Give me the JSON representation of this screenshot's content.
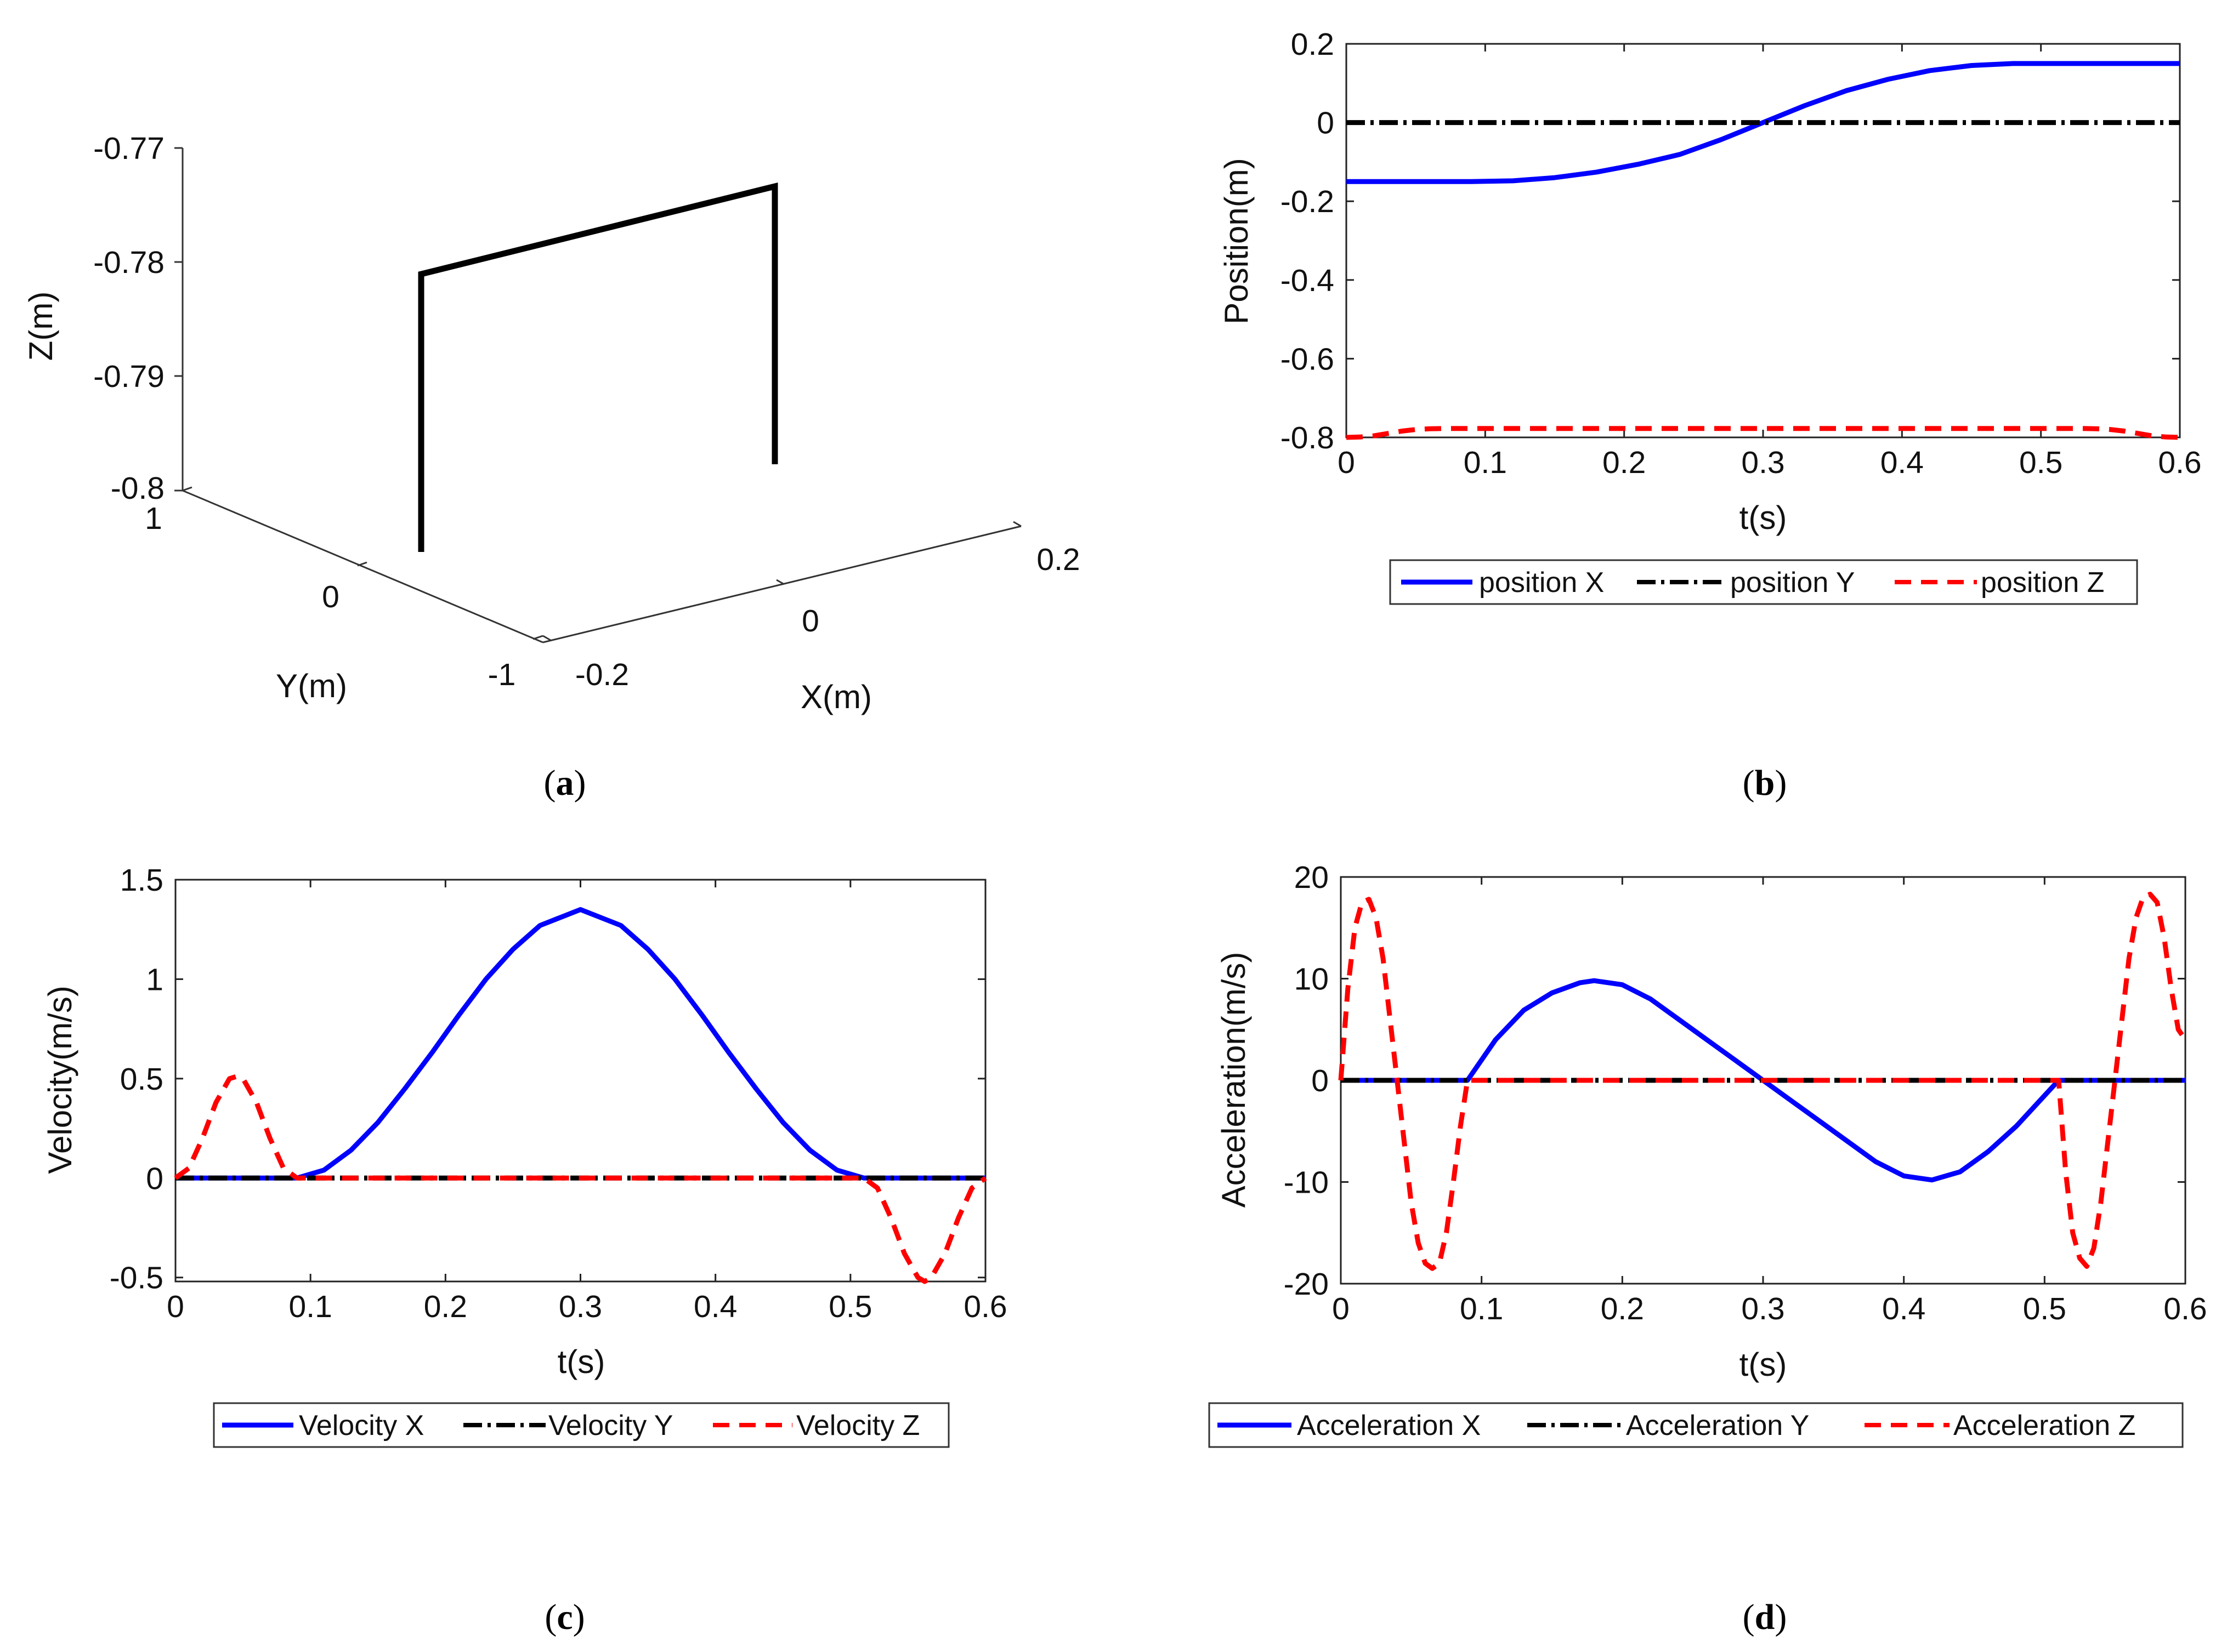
{
  "chart_data": [
    {
      "id": "a",
      "type": "line3d",
      "caption_letter": "a",
      "xlabel": "X(m)",
      "ylabel": "Y(m)",
      "zlabel": "Z(m)",
      "x_ticks": [
        "-0.2",
        "0",
        "0.2"
      ],
      "y_ticks": [
        "-1",
        "0",
        "1"
      ],
      "z_ticks": [
        "-0.77",
        "-0.78",
        "-0.79",
        "-0.8"
      ],
      "xlim": [
        -0.2,
        0.2
      ],
      "ylim": [
        -1,
        1
      ],
      "zlim": [
        -0.8,
        -0.77
      ],
      "path": {
        "x": [
          -0.15,
          -0.15,
          0.15,
          0.15
        ],
        "y": [
          0,
          0,
          0,
          0
        ],
        "z": [
          -0.8,
          -0.7775,
          -0.7775,
          -0.8
        ]
      },
      "color": "#000000"
    },
    {
      "id": "b",
      "type": "line",
      "caption_letter": "b",
      "xlabel": "t(s)",
      "ylabel": "Position(m)",
      "xlim": [
        0,
        0.6
      ],
      "ylim": [
        -0.8,
        0.2
      ],
      "x_ticks": [
        "0",
        "0.1",
        "0.2",
        "0.3",
        "0.4",
        "0.5",
        "0.6"
      ],
      "y_ticks": [
        "-0.8",
        "-0.6",
        "-0.4",
        "-0.2",
        "0",
        "0.2"
      ],
      "legend": [
        "position X",
        "position Y",
        "position Z"
      ],
      "series": [
        {
          "name": "position X",
          "color": "#0000ff",
          "style": "solid",
          "x": [
            0,
            0.05,
            0.09,
            0.12,
            0.15,
            0.18,
            0.21,
            0.24,
            0.27,
            0.3,
            0.33,
            0.36,
            0.39,
            0.42,
            0.45,
            0.48,
            0.51,
            0.55,
            0.6
          ],
          "values": [
            -0.15,
            -0.15,
            -0.15,
            -0.148,
            -0.14,
            -0.126,
            -0.106,
            -0.081,
            -0.043,
            0,
            0.043,
            0.081,
            0.11,
            0.132,
            0.145,
            0.15,
            0.15,
            0.15,
            0.15
          ]
        },
        {
          "name": "position Y",
          "color": "#000000",
          "style": "dashdot",
          "x": [
            0,
            0.6
          ],
          "values": [
            0,
            0
          ]
        },
        {
          "name": "position Z",
          "color": "#ff0000",
          "style": "dashed",
          "x": [
            0,
            0.01,
            0.02,
            0.03,
            0.04,
            0.05,
            0.06,
            0.07,
            0.09,
            0.3,
            0.51,
            0.53,
            0.54,
            0.55,
            0.56,
            0.57,
            0.58,
            0.59,
            0.6
          ],
          "values": [
            -0.8,
            -0.799,
            -0.796,
            -0.79,
            -0.784,
            -0.78,
            -0.778,
            -0.7775,
            -0.7775,
            -0.7775,
            -0.7775,
            -0.7775,
            -0.778,
            -0.78,
            -0.784,
            -0.79,
            -0.796,
            -0.799,
            -0.8
          ]
        }
      ]
    },
    {
      "id": "c",
      "type": "line",
      "caption_letter": "c",
      "xlabel": "t(s)",
      "ylabel": "Velocity(m/s)",
      "xlim": [
        0,
        0.6
      ],
      "ylim": [
        -0.52,
        1.5
      ],
      "x_ticks": [
        "0",
        "0.1",
        "0.2",
        "0.3",
        "0.4",
        "0.5",
        "0.6"
      ],
      "y_ticks": [
        "-0.5",
        "0",
        "0.5",
        "1",
        "1.5"
      ],
      "legend": [
        "Velocity X",
        "Velocity Y",
        "Velocity Z"
      ],
      "series": [
        {
          "name": "Velocity X",
          "color": "#0000ff",
          "style": "solid",
          "x": [
            0,
            0.09,
            0.11,
            0.13,
            0.15,
            0.17,
            0.19,
            0.21,
            0.23,
            0.25,
            0.27,
            0.3,
            0.33,
            0.35,
            0.37,
            0.39,
            0.41,
            0.43,
            0.45,
            0.47,
            0.49,
            0.51,
            0.55,
            0.6
          ],
          "values": [
            0,
            0,
            0.04,
            0.14,
            0.28,
            0.45,
            0.63,
            0.82,
            1.0,
            1.15,
            1.27,
            1.35,
            1.27,
            1.15,
            1.0,
            0.82,
            0.63,
            0.45,
            0.28,
            0.14,
            0.04,
            0,
            0,
            0
          ]
        },
        {
          "name": "Velocity Y",
          "color": "#000000",
          "style": "dashdot",
          "x": [
            0,
            0.6
          ],
          "values": [
            0,
            0
          ]
        },
        {
          "name": "Velocity Z",
          "color": "#ff0000",
          "style": "dashed",
          "x": [
            0,
            0.01,
            0.02,
            0.03,
            0.04,
            0.045,
            0.05,
            0.06,
            0.07,
            0.08,
            0.09,
            0.3,
            0.51,
            0.52,
            0.53,
            0.54,
            0.55,
            0.555,
            0.56,
            0.57,
            0.58,
            0.59,
            0.6
          ],
          "values": [
            0,
            0.05,
            0.2,
            0.38,
            0.5,
            0.51,
            0.5,
            0.38,
            0.2,
            0.05,
            0,
            0,
            0,
            -0.05,
            -0.2,
            -0.38,
            -0.5,
            -0.52,
            -0.5,
            -0.38,
            -0.2,
            -0.05,
            0
          ]
        }
      ]
    },
    {
      "id": "d",
      "type": "line",
      "caption_letter": "d",
      "xlabel": "t(s)",
      "ylabel": "Acceleration(m/s)",
      "xlim": [
        0,
        0.6
      ],
      "ylim": [
        -20,
        20
      ],
      "x_ticks": [
        "0",
        "0.1",
        "0.2",
        "0.3",
        "0.4",
        "0.5",
        "0.6"
      ],
      "y_ticks": [
        "-20",
        "-10",
        "0",
        "10",
        "20"
      ],
      "legend": [
        "Acceleration X",
        "Acceleration Y",
        "Acceleration Z"
      ],
      "series": [
        {
          "name": "Acceleration X",
          "color": "#0000ff",
          "style": "solid",
          "x": [
            0,
            0.09,
            0.11,
            0.13,
            0.15,
            0.17,
            0.18,
            0.2,
            0.22,
            0.24,
            0.26,
            0.28,
            0.3,
            0.32,
            0.34,
            0.36,
            0.38,
            0.4,
            0.42,
            0.44,
            0.46,
            0.48,
            0.5,
            0.51,
            0.6
          ],
          "values": [
            0,
            0,
            4.0,
            6.9,
            8.6,
            9.6,
            9.8,
            9.4,
            8.0,
            6.0,
            4.0,
            2.0,
            0,
            -2.0,
            -4.0,
            -6.0,
            -8.0,
            -9.4,
            -9.8,
            -9.0,
            -7.0,
            -4.5,
            -1.5,
            0,
            0
          ]
        },
        {
          "name": "Acceleration Y",
          "color": "#000000",
          "style": "dashdot",
          "x": [
            0,
            0.6
          ],
          "values": [
            0,
            0
          ]
        },
        {
          "name": "Acceleration Z",
          "color": "#ff0000",
          "style": "dashed",
          "x": [
            0,
            0.005,
            0.01,
            0.015,
            0.02,
            0.025,
            0.03,
            0.035,
            0.04,
            0.045,
            0.05,
            0.055,
            0.06,
            0.065,
            0.07,
            0.075,
            0.08,
            0.085,
            0.09,
            0.3,
            0.51,
            0.515,
            0.52,
            0.525,
            0.53,
            0.535,
            0.54,
            0.545,
            0.55,
            0.555,
            0.56,
            0.565,
            0.57,
            0.575,
            0.58,
            0.585,
            0.59,
            0.595,
            0.6
          ],
          "values": [
            0,
            9.0,
            15.0,
            17.5,
            17.8,
            16.0,
            12.0,
            6.0,
            0,
            -6.0,
            -12.0,
            -16.0,
            -18.0,
            -18.5,
            -18.0,
            -15.0,
            -10.0,
            -4.5,
            0,
            0,
            0,
            -9.0,
            -15.0,
            -17.5,
            -18.3,
            -16.5,
            -12.0,
            -6.0,
            0,
            6.0,
            12.0,
            16.0,
            18.0,
            18.3,
            17.5,
            14.0,
            9.0,
            5.0,
            4.0
          ]
        }
      ]
    }
  ]
}
